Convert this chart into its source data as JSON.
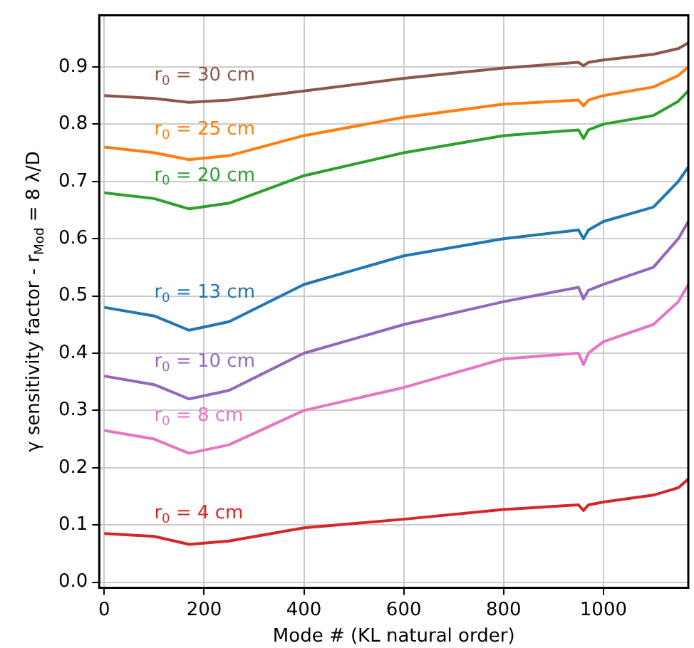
{
  "chart_data": {
    "type": "line",
    "xlabel": "Mode # (KL natural order)",
    "ylabel": "γ sensitivity factor - r$_{Mod}$ = 8 λ/D",
    "x": [
      0,
      100,
      170,
      250,
      400,
      600,
      800,
      950,
      960,
      970,
      1000,
      1100,
      1150,
      1170
    ],
    "series": [
      {
        "name": "r$_{0}$ = 30 cm",
        "color": "#8c564b",
        "values": [
          0.85,
          0.845,
          0.838,
          0.842,
          0.858,
          0.88,
          0.898,
          0.908,
          0.902,
          0.908,
          0.912,
          0.922,
          0.932,
          0.942
        ]
      },
      {
        "name": "r$_{0}$ = 25 cm",
        "color": "#ff7f0e",
        "values": [
          0.76,
          0.75,
          0.738,
          0.745,
          0.78,
          0.812,
          0.835,
          0.842,
          0.832,
          0.842,
          0.85,
          0.865,
          0.885,
          0.9
        ]
      },
      {
        "name": "r$_{0}$ = 20 cm",
        "color": "#2ca02c",
        "values": [
          0.68,
          0.67,
          0.652,
          0.662,
          0.71,
          0.75,
          0.78,
          0.79,
          0.775,
          0.79,
          0.8,
          0.815,
          0.84,
          0.858
        ]
      },
      {
        "name": "r$_{0}$ = 13 cm",
        "color": "#1f77b4",
        "values": [
          0.48,
          0.465,
          0.44,
          0.455,
          0.52,
          0.57,
          0.6,
          0.615,
          0.6,
          0.615,
          0.63,
          0.655,
          0.7,
          0.725
        ]
      },
      {
        "name": "r$_{0}$ = 10 cm",
        "color": "#9467bd",
        "values": [
          0.36,
          0.345,
          0.32,
          0.335,
          0.4,
          0.45,
          0.49,
          0.515,
          0.495,
          0.51,
          0.52,
          0.55,
          0.6,
          0.63
        ]
      },
      {
        "name": "r$_{0}$ = 8 cm",
        "color": "#e377c2",
        "values": [
          0.265,
          0.25,
          0.225,
          0.24,
          0.3,
          0.34,
          0.39,
          0.4,
          0.38,
          0.4,
          0.42,
          0.45,
          0.49,
          0.52
        ]
      },
      {
        "name": "r$_{0}$ = 4 cm",
        "color": "#d62728",
        "values": [
          0.085,
          0.08,
          0.066,
          0.072,
          0.095,
          0.11,
          0.127,
          0.135,
          0.125,
          0.135,
          0.14,
          0.152,
          0.165,
          0.18
        ]
      }
    ],
    "xlim": [
      -10,
      1170
    ],
    "ylim": [
      -0.01,
      0.99
    ],
    "xticks": [
      0,
      200,
      400,
      600,
      800,
      1000
    ],
    "yticks": [
      {
        "value": 0,
        "label": "0.0"
      },
      0.1,
      0.2,
      0.3,
      0.4,
      0.5,
      0.6,
      0.7,
      0.8,
      0.9
    ],
    "grid": true,
    "legend": false,
    "marker": "none",
    "line_style": "solid"
  }
}
